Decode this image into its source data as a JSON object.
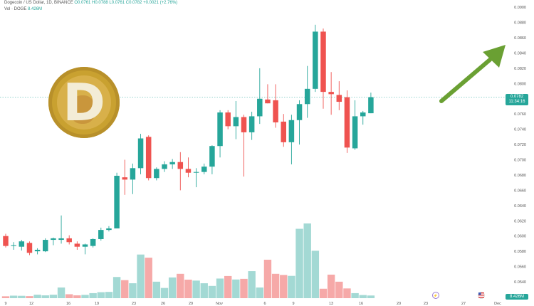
{
  "header": {
    "symbol_line": "Dogecoin / US Dollar, 1D, BINANCE",
    "ohlc": "O0.0761 H0.0788 L0.0761 C0.0782 +0.0021 (+2.76%)",
    "vol_label": "Vol · DOGE",
    "vol_value": "8.426M"
  },
  "tags": {
    "price": "0.0782",
    "countdown": "11:34:16",
    "volume": "8.426M"
  },
  "logo": {
    "letter": "D"
  },
  "icons": {
    "arrow": "green-up-arrow-icon",
    "logo": "dogecoin-logo-icon",
    "flag": "us-flag-icon",
    "event": "event-marker-icon"
  },
  "colors": {
    "up": "#26a69a",
    "down": "#ef5350",
    "vol_up": "#a3d9d4",
    "vol_down": "#f6a9a8",
    "arrow": "#6aa033"
  },
  "chart_data": {
    "type": "candlestick",
    "x_tick_labels": [
      "9",
      "12",
      "16",
      "19",
      "23",
      "26",
      "29",
      "Nov",
      "6",
      "9",
      "13",
      "16",
      "20",
      "23",
      "27",
      "Dec"
    ],
    "y_tick_labels": [
      "0.0900",
      "0.0880",
      "0.0860",
      "0.0840",
      "0.0820",
      "0.0800",
      "0.0780",
      "0.0760",
      "0.0740",
      "0.0720",
      "0.0700",
      "0.0680",
      "0.0660",
      "0.0640",
      "0.0620",
      "0.0600",
      "0.0580",
      "0.0560",
      "0.0540"
    ],
    "ylim": [
      0.054,
      0.0902
    ],
    "current_price": 0.0782,
    "grid": false,
    "candles": [
      {
        "o": 0.06,
        "h": 0.0603,
        "l": 0.0585,
        "c": 0.0587
      },
      {
        "o": 0.0587,
        "h": 0.0592,
        "l": 0.0582,
        "c": 0.0588
      },
      {
        "o": 0.0586,
        "h": 0.0595,
        "l": 0.0581,
        "c": 0.0593
      },
      {
        "o": 0.0591,
        "h": 0.0593,
        "l": 0.0575,
        "c": 0.0578
      },
      {
        "o": 0.058,
        "h": 0.0584,
        "l": 0.0576,
        "c": 0.0582
      },
      {
        "o": 0.058,
        "h": 0.0597,
        "l": 0.0579,
        "c": 0.0595
      },
      {
        "o": 0.0595,
        "h": 0.0598,
        "l": 0.0588,
        "c": 0.0597
      },
      {
        "o": 0.0595,
        "h": 0.0627,
        "l": 0.059,
        "c": 0.0597
      },
      {
        "o": 0.0597,
        "h": 0.0601,
        "l": 0.0589,
        "c": 0.0592
      },
      {
        "o": 0.059,
        "h": 0.0593,
        "l": 0.0582,
        "c": 0.0586
      },
      {
        "o": 0.0586,
        "h": 0.059,
        "l": 0.0576,
        "c": 0.0589
      },
      {
        "o": 0.0587,
        "h": 0.0597,
        "l": 0.0585,
        "c": 0.0596
      },
      {
        "o": 0.0596,
        "h": 0.0611,
        "l": 0.0594,
        "c": 0.0608
      },
      {
        "o": 0.0608,
        "h": 0.0613,
        "l": 0.0606,
        "c": 0.061
      },
      {
        "o": 0.061,
        "h": 0.0683,
        "l": 0.061,
        "c": 0.0679
      },
      {
        "o": 0.0677,
        "h": 0.07,
        "l": 0.0654,
        "c": 0.0674
      },
      {
        "o": 0.0674,
        "h": 0.0695,
        "l": 0.0655,
        "c": 0.0689
      },
      {
        "o": 0.0689,
        "h": 0.0734,
        "l": 0.0681,
        "c": 0.0728
      },
      {
        "o": 0.073,
        "h": 0.0732,
        "l": 0.0673,
        "c": 0.0676
      },
      {
        "o": 0.0676,
        "h": 0.069,
        "l": 0.0673,
        "c": 0.0688
      },
      {
        "o": 0.0688,
        "h": 0.0698,
        "l": 0.0684,
        "c": 0.0694
      },
      {
        "o": 0.0694,
        "h": 0.0701,
        "l": 0.0688,
        "c": 0.0697
      },
      {
        "o": 0.0697,
        "h": 0.071,
        "l": 0.066,
        "c": 0.0688
      },
      {
        "o": 0.0688,
        "h": 0.0703,
        "l": 0.0677,
        "c": 0.0683
      },
      {
        "o": 0.0683,
        "h": 0.0689,
        "l": 0.0664,
        "c": 0.0684
      },
      {
        "o": 0.0684,
        "h": 0.0695,
        "l": 0.0681,
        "c": 0.0691
      },
      {
        "o": 0.0691,
        "h": 0.0719,
        "l": 0.0681,
        "c": 0.0718
      },
      {
        "o": 0.0718,
        "h": 0.0765,
        "l": 0.0703,
        "c": 0.0762
      },
      {
        "o": 0.0762,
        "h": 0.0765,
        "l": 0.074,
        "c": 0.0744
      },
      {
        "o": 0.0744,
        "h": 0.0777,
        "l": 0.0727,
        "c": 0.0756
      },
      {
        "o": 0.0756,
        "h": 0.0759,
        "l": 0.0678,
        "c": 0.0736
      },
      {
        "o": 0.0736,
        "h": 0.0763,
        "l": 0.0726,
        "c": 0.0757
      },
      {
        "o": 0.0757,
        "h": 0.082,
        "l": 0.0747,
        "c": 0.078
      },
      {
        "o": 0.0779,
        "h": 0.0799,
        "l": 0.0774,
        "c": 0.0774
      },
      {
        "o": 0.0778,
        "h": 0.0799,
        "l": 0.0742,
        "c": 0.0749
      },
      {
        "o": 0.075,
        "h": 0.076,
        "l": 0.0717,
        "c": 0.0723
      },
      {
        "o": 0.0723,
        "h": 0.0759,
        "l": 0.0694,
        "c": 0.0752
      },
      {
        "o": 0.0752,
        "h": 0.0778,
        "l": 0.072,
        "c": 0.0773
      },
      {
        "o": 0.0773,
        "h": 0.0823,
        "l": 0.0755,
        "c": 0.0793
      },
      {
        "o": 0.0793,
        "h": 0.0877,
        "l": 0.0789,
        "c": 0.0868
      },
      {
        "o": 0.0868,
        "h": 0.0872,
        "l": 0.0767,
        "c": 0.0789
      },
      {
        "o": 0.0789,
        "h": 0.0815,
        "l": 0.0759,
        "c": 0.0786
      },
      {
        "o": 0.0785,
        "h": 0.0803,
        "l": 0.0765,
        "c": 0.0776
      },
      {
        "o": 0.0782,
        "h": 0.0791,
        "l": 0.0709,
        "c": 0.0716
      },
      {
        "o": 0.0715,
        "h": 0.0778,
        "l": 0.0713,
        "c": 0.0757
      },
      {
        "o": 0.0757,
        "h": 0.0764,
        "l": 0.0746,
        "c": 0.0762
      },
      {
        "o": 0.0761,
        "h": 0.0788,
        "l": 0.0761,
        "c": 0.0782
      }
    ],
    "volumes": [
      1.2,
      1.6,
      1.5,
      1.3,
      2.2,
      1.8,
      2.2,
      6.8,
      2.5,
      1.8,
      2.1,
      3.2,
      3.8,
      4.0,
      13.5,
      11.5,
      9.5,
      27.8,
      25.8,
      10.5,
      6.5,
      13.2,
      15.5,
      11.8,
      11.2,
      9.5,
      7.8,
      12.5,
      14.1,
      11.9,
      12.3,
      17.2,
      6.8,
      24.5,
      15.5,
      14.8,
      14.2,
      44.2,
      47.6,
      30.2,
      6.0,
      15.0,
      10.5,
      6.2,
      3.2,
      2.0,
      1.7
    ]
  }
}
